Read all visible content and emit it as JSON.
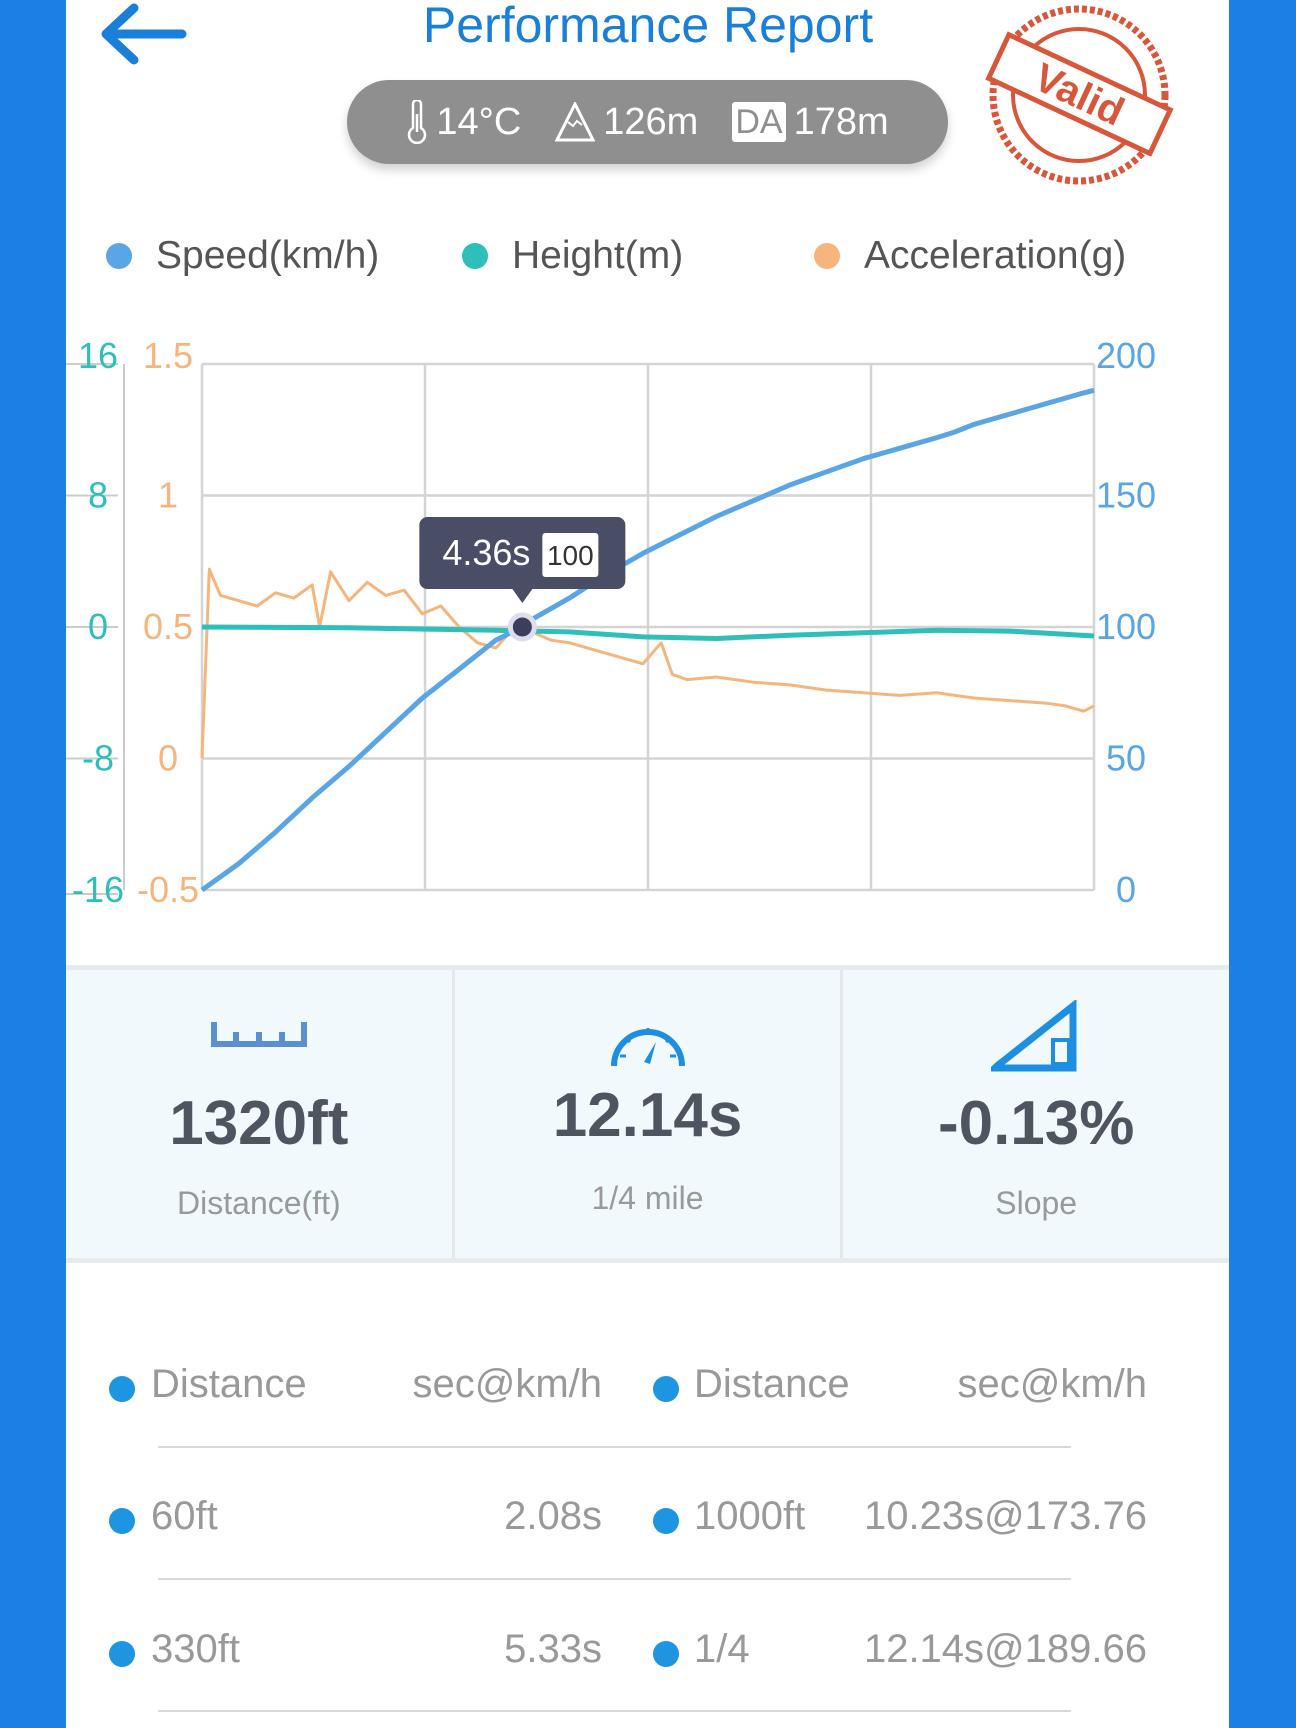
{
  "header": {
    "title": "Performance Report",
    "back_icon": "arrow-left-icon",
    "stamp_text": "Valid"
  },
  "conditions": {
    "temperature": "14°C",
    "altitude": "126m",
    "da_label": "DA",
    "density_altitude": "178m"
  },
  "colors": {
    "speed": "#5aa5e6",
    "height": "#2ebfbb",
    "acceleration": "#f5b57c",
    "accent": "#1a7fd8",
    "background": "#1b7fe3"
  },
  "chart_data": {
    "type": "line",
    "legend": [
      "Speed(km/h)",
      "Height(m)",
      "Acceleration(g)"
    ],
    "legend_placement": "top",
    "grid": true,
    "x_range": [
      0,
      12.14
    ],
    "left_axis_height": {
      "ticks": [
        "16",
        "8",
        "0",
        "-8",
        "-16"
      ],
      "range": [
        -16,
        16
      ]
    },
    "left_axis_accel": {
      "ticks": [
        "1.5",
        "1",
        "0.5",
        "0",
        "-0.5"
      ],
      "range": [
        -0.5,
        1.5
      ]
    },
    "right_axis_speed": {
      "ticks": [
        "200",
        "150",
        "100",
        "50",
        "0"
      ],
      "range": [
        0,
        200
      ]
    },
    "tooltip": {
      "time": "4.36s",
      "value": "100",
      "x": 4.36,
      "y": 100
    },
    "series": [
      {
        "name": "Speed(km/h)",
        "x": [
          0,
          0.5,
          1,
          1.5,
          2,
          2.5,
          3,
          3.5,
          4,
          4.36,
          4.5,
          5,
          5.5,
          6,
          6.5,
          7,
          7.5,
          8,
          8.5,
          9,
          9.5,
          10,
          10.23,
          10.5,
          11,
          11.5,
          12,
          12.14
        ],
        "values": [
          0,
          10,
          22,
          35,
          47,
          60,
          73,
          84,
          95,
          100,
          103,
          111,
          120,
          128,
          135,
          142,
          148,
          154,
          159,
          164,
          168,
          172,
          174,
          177,
          181,
          185,
          189,
          190
        ]
      },
      {
        "name": "Height(m)",
        "x": [
          0,
          2,
          4,
          5,
          6,
          7,
          8,
          9,
          10,
          11,
          12.14
        ],
        "values": [
          0,
          -0.05,
          -0.2,
          -0.3,
          -0.6,
          -0.7,
          -0.5,
          -0.35,
          -0.2,
          -0.25,
          -0.55
        ]
      },
      {
        "name": "Acceleration(g)",
        "x": [
          0,
          0.1,
          0.25,
          0.5,
          0.75,
          1,
          1.25,
          1.5,
          1.6,
          1.75,
          2,
          2.25,
          2.5,
          2.75,
          3,
          3.25,
          3.5,
          3.75,
          4,
          4.25,
          4.5,
          4.75,
          5,
          5.5,
          6,
          6.25,
          6.4,
          6.6,
          7,
          7.5,
          8,
          8.5,
          9,
          9.5,
          10,
          10.5,
          11,
          11.5,
          11.75,
          12,
          12.14
        ],
        "values": [
          0,
          0.72,
          0.62,
          0.6,
          0.58,
          0.63,
          0.61,
          0.66,
          0.5,
          0.71,
          0.6,
          0.67,
          0.62,
          0.64,
          0.55,
          0.58,
          0.5,
          0.44,
          0.42,
          0.5,
          0.48,
          0.45,
          0.44,
          0.4,
          0.36,
          0.44,
          0.32,
          0.3,
          0.31,
          0.29,
          0.28,
          0.26,
          0.25,
          0.24,
          0.25,
          0.23,
          0.22,
          0.21,
          0.2,
          0.18,
          0.2
        ]
      }
    ]
  },
  "stats": [
    {
      "icon": "ruler-icon",
      "value": "1320ft",
      "label": "Distance(ft)"
    },
    {
      "icon": "speedometer-icon",
      "value": "12.14s",
      "label": "1/4 mile"
    },
    {
      "icon": "slope-icon",
      "value": "-0.13%",
      "label": "Slope"
    }
  ],
  "table": {
    "headers": [
      "Distance",
      "sec@km/h",
      "Distance",
      "sec@km/h"
    ],
    "rows": [
      [
        "60ft",
        "2.08s",
        "1000ft",
        "10.23s@173.76"
      ],
      [
        "330ft",
        "5.33s",
        "1/4",
        "12.14s@189.66"
      ]
    ]
  }
}
